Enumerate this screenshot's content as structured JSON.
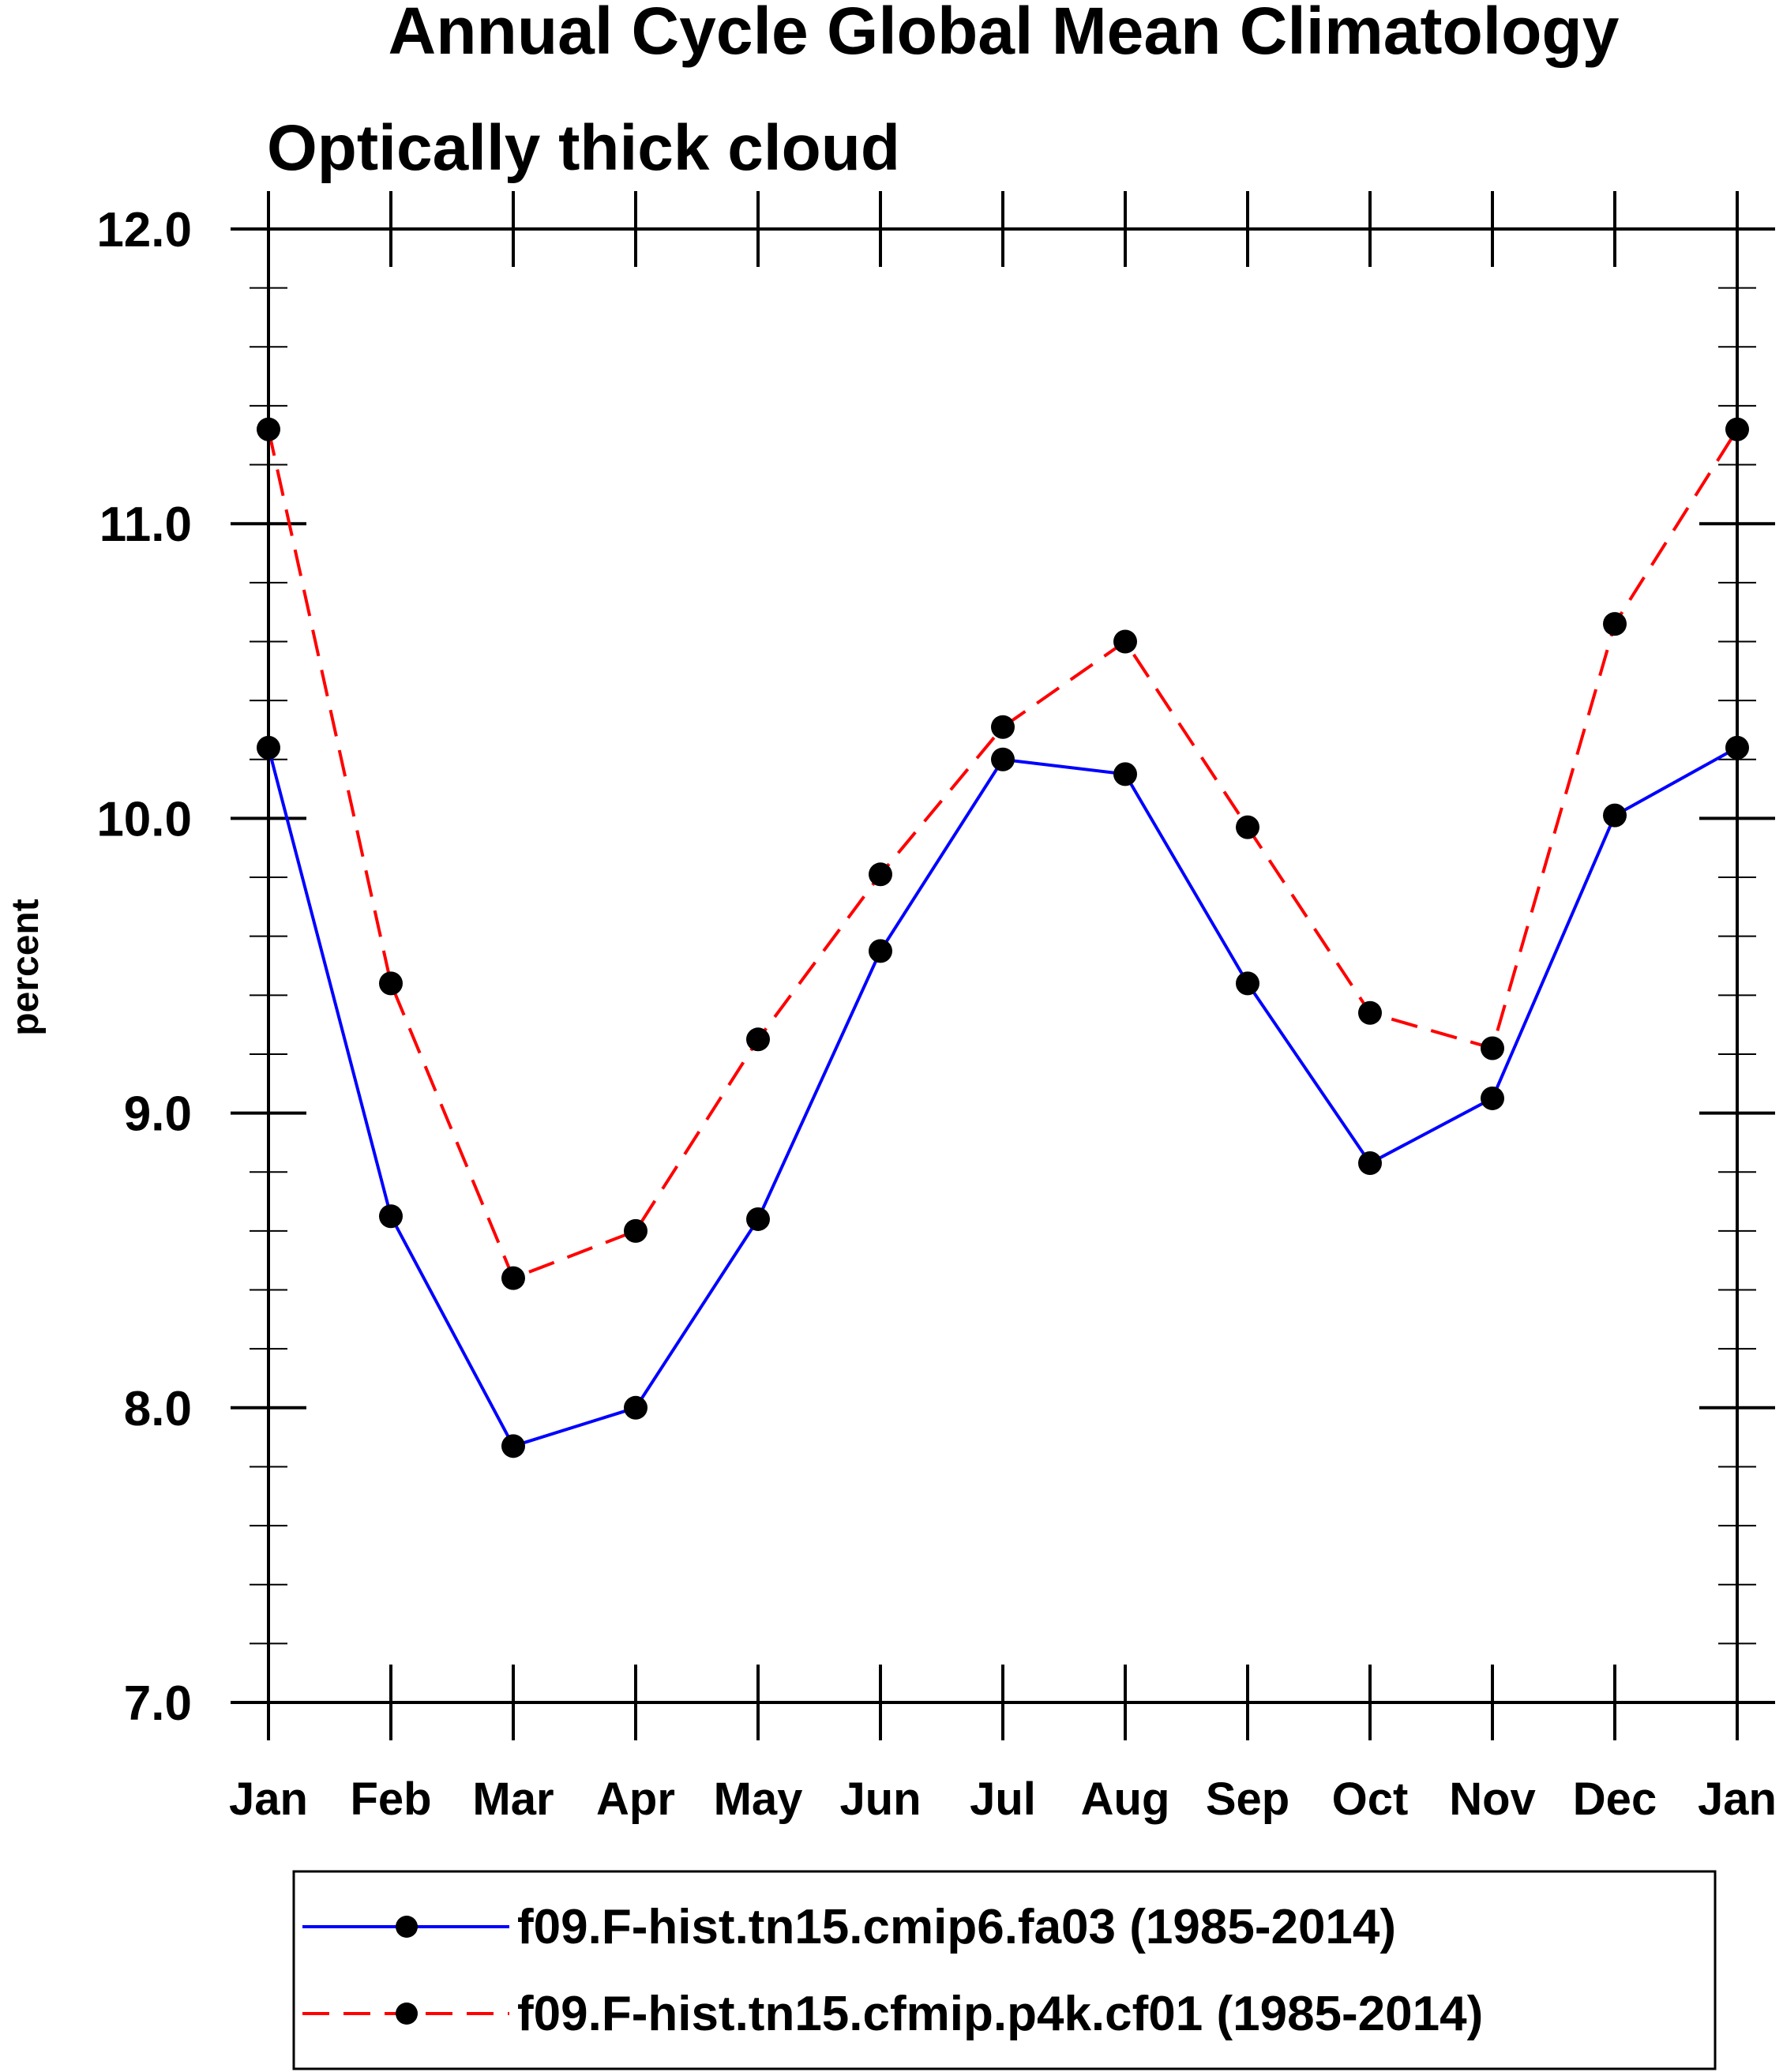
{
  "chart_data": {
    "type": "line",
    "title": "Annual Cycle Global Mean Climatology",
    "subtitle": "Optically thick cloud",
    "ylabel": "percent",
    "xlabel": "",
    "ylim": [
      7.0,
      12.0
    ],
    "ytick_labels": [
      "7.0",
      "8.0",
      "9.0",
      "10.0",
      "11.0",
      "12.0"
    ],
    "yticks": [
      7.0,
      8.0,
      9.0,
      10.0,
      11.0,
      12.0
    ],
    "y_minor_step": 0.2,
    "categories": [
      "Jan",
      "Feb",
      "Mar",
      "Apr",
      "May",
      "Jun",
      "Jul",
      "Aug",
      "Sep",
      "Oct",
      "Nov",
      "Dec",
      "Jan"
    ],
    "grid": false,
    "legend_position": "bottom",
    "series": [
      {
        "name": "f09.F-hist.tn15.cmip6.fa03 (1985-2014)",
        "color": "#0000ff",
        "line_style": "solid",
        "marker": "filled-circle",
        "values": [
          10.24,
          8.65,
          7.87,
          8.0,
          8.64,
          9.55,
          10.2,
          10.15,
          9.44,
          8.83,
          9.05,
          10.01,
          10.24
        ]
      },
      {
        "name": "f09.F-hist.tn15.cfmip.p4k.cf01 (1985-2014)",
        "color": "#ff0000",
        "line_style": "dashed",
        "marker": "filled-circle",
        "values": [
          11.32,
          9.44,
          8.44,
          8.6,
          9.25,
          9.81,
          10.31,
          10.6,
          9.97,
          9.34,
          9.22,
          10.66,
          11.32
        ]
      }
    ]
  }
}
